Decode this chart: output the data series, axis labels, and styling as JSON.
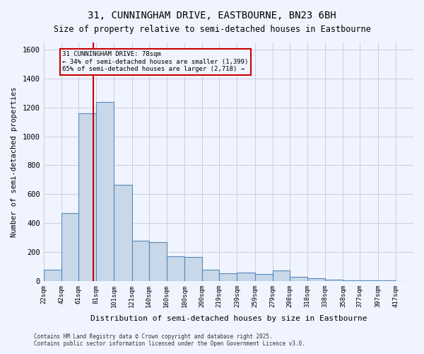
{
  "title1": "31, CUNNINGHAM DRIVE, EASTBOURNE, BN23 6BH",
  "title2": "Size of property relative to semi-detached houses in Eastbourne",
  "xlabel": "Distribution of semi-detached houses by size in Eastbourne",
  "ylabel": "Number of semi-detached properties",
  "footer1": "Contains HM Land Registry data © Crown copyright and database right 2025.",
  "footer2": "Contains public sector information licensed under the Open Government Licence v3.0.",
  "property_label": "31 CUNNINGHAM DRIVE: 78sqm",
  "smaller_label": "← 34% of semi-detached houses are smaller (1,399)",
  "larger_label": "65% of semi-detached houses are larger (2,718) →",
  "property_size": 78,
  "bar_color": "#c8d8e8",
  "bar_edge_color": "#5588bb",
  "vline_color": "#cc0000",
  "annotation_box_color": "#cc0000",
  "background_color": "#f0f4ff",
  "grid_color": "#ccccdd",
  "bin_edges": [
    22,
    42,
    61,
    81,
    101,
    121,
    140,
    160,
    180,
    200,
    219,
    239,
    259,
    279,
    298,
    318,
    338,
    358,
    377,
    397,
    417,
    437
  ],
  "tick_labels": [
    "22sqm",
    "42sqm",
    "61sqm",
    "81sqm",
    "101sqm",
    "121sqm",
    "140sqm",
    "160sqm",
    "180sqm",
    "200sqm",
    "219sqm",
    "239sqm",
    "259sqm",
    "279sqm",
    "298sqm",
    "318sqm",
    "338sqm",
    "358sqm",
    "377sqm",
    "397sqm",
    "417sqm"
  ],
  "counts": [
    75,
    470,
    1160,
    1240,
    665,
    280,
    270,
    170,
    165,
    75,
    55,
    60,
    50,
    70,
    30,
    20,
    10,
    5,
    3,
    2,
    1
  ],
  "ylim": [
    0,
    1650
  ],
  "yticks": [
    0,
    200,
    400,
    600,
    800,
    1000,
    1200,
    1400,
    1600
  ]
}
